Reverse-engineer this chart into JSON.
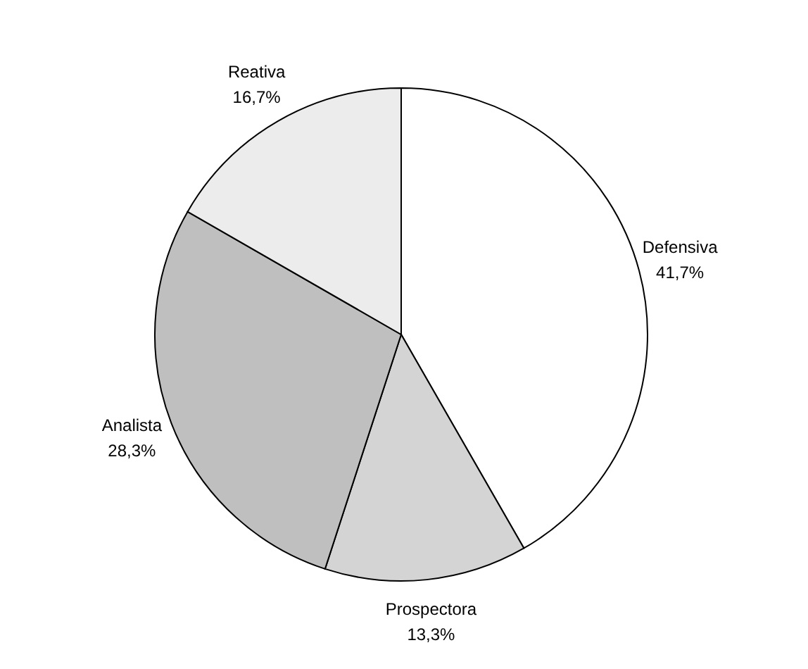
{
  "chart_data": {
    "type": "pie",
    "categories": [
      "Defensiva",
      "Prospectora",
      "Analista",
      "Reativa"
    ],
    "values": [
      41.7,
      13.3,
      28.3,
      16.7
    ],
    "value_labels": [
      "41,7%",
      "13,3%",
      "28,3%",
      "16,7%"
    ],
    "colors": [
      "#ffffff",
      "#d4d4d4",
      "#bfbfbf",
      "#ececec"
    ]
  }
}
